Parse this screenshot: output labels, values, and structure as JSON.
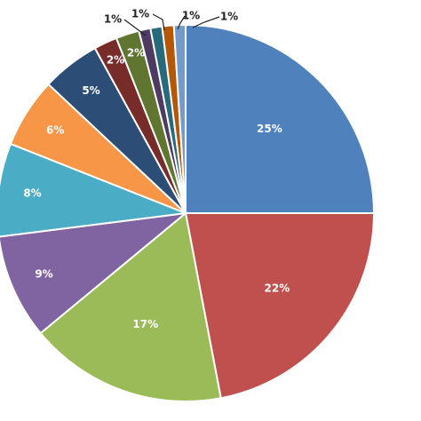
{
  "chart_data": {
    "type": "pie",
    "title": "",
    "slices": [
      {
        "label": "25%",
        "value": 25,
        "color": "#4f81bd"
      },
      {
        "label": "22%",
        "value": 22,
        "color": "#c0504d"
      },
      {
        "label": "17%",
        "value": 17,
        "color": "#9bbb59"
      },
      {
        "label": "9%",
        "value": 9,
        "color": "#8064a2"
      },
      {
        "label": "8%",
        "value": 8,
        "color": "#4bacc6"
      },
      {
        "label": "6%",
        "value": 6,
        "color": "#f79646"
      },
      {
        "label": "5%",
        "value": 5,
        "color": "#2c4d75"
      },
      {
        "label": "2%",
        "value": 2,
        "color": "#772c2a"
      },
      {
        "label": "2%",
        "value": 2,
        "color": "#5f7530"
      },
      {
        "label": "1%",
        "value": 1,
        "color": "#4d3b62"
      },
      {
        "label": "1%",
        "value": 1,
        "color": "#276a7c"
      },
      {
        "label": "1%",
        "value": 1,
        "color": "#b65708"
      },
      {
        "label": "1%",
        "value": 1,
        "color": "#729aca"
      }
    ],
    "start_angle_deg": 0,
    "direction": "clockwise",
    "legend": "none"
  }
}
